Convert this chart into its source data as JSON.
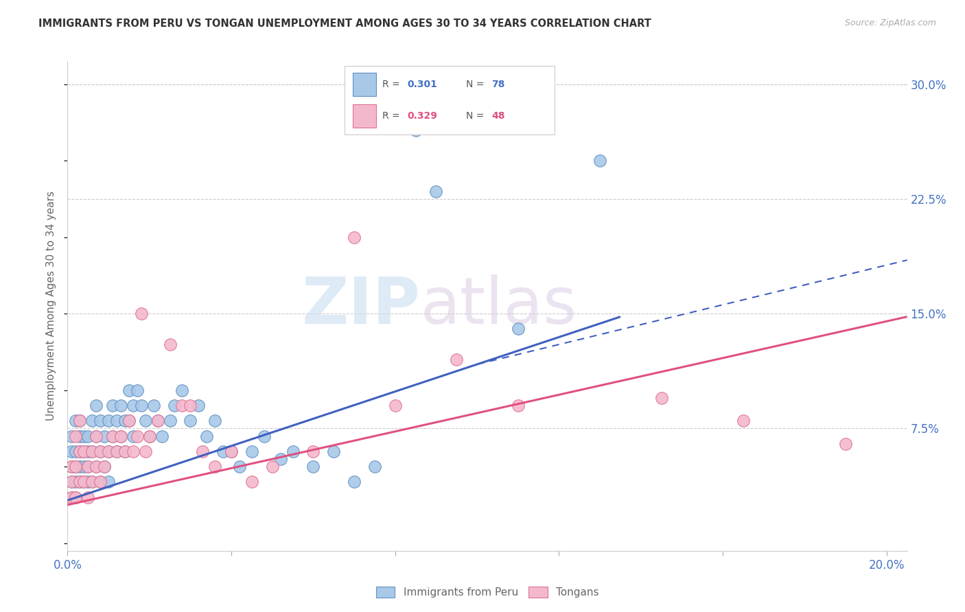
{
  "title": "IMMIGRANTS FROM PERU VS TONGAN UNEMPLOYMENT AMONG AGES 30 TO 34 YEARS CORRELATION CHART",
  "source": "Source: ZipAtlas.com",
  "ylabel": "Unemployment Among Ages 30 to 34 years",
  "xlim": [
    0.0,
    0.205
  ],
  "ylim": [
    -0.005,
    0.315
  ],
  "xticks": [
    0.0,
    0.04,
    0.08,
    0.12,
    0.16,
    0.2
  ],
  "yticks_right": [
    0.0,
    0.075,
    0.15,
    0.225,
    0.3
  ],
  "ytick_labels_right": [
    "",
    "7.5%",
    "15.0%",
    "22.5%",
    "30.0%"
  ],
  "blue_color": "#a8c8e8",
  "pink_color": "#f4b8cc",
  "blue_edge": "#6090c0",
  "pink_edge": "#e07090",
  "blue_line": "#4060c0",
  "pink_line": "#e05080",
  "watermark_zip": "ZIP",
  "watermark_atlas": "atlas",
  "trendline_blue_x0": 0.0,
  "trendline_blue_y0": 0.028,
  "trendline_blue_x1": 0.135,
  "trendline_blue_y1": 0.148,
  "trendline_blue_ext_x1": 0.205,
  "trendline_blue_ext_y1": 0.185,
  "trendline_pink_x0": 0.0,
  "trendline_pink_y0": 0.025,
  "trendline_pink_x1": 0.205,
  "trendline_pink_y1": 0.148,
  "scatter_blue_x": [
    0.001,
    0.001,
    0.001,
    0.001,
    0.001,
    0.002,
    0.002,
    0.002,
    0.002,
    0.002,
    0.003,
    0.003,
    0.003,
    0.003,
    0.003,
    0.004,
    0.004,
    0.004,
    0.004,
    0.005,
    0.005,
    0.005,
    0.005,
    0.006,
    0.006,
    0.006,
    0.007,
    0.007,
    0.007,
    0.008,
    0.008,
    0.008,
    0.009,
    0.009,
    0.01,
    0.01,
    0.01,
    0.011,
    0.011,
    0.012,
    0.012,
    0.013,
    0.013,
    0.014,
    0.014,
    0.015,
    0.015,
    0.016,
    0.016,
    0.017,
    0.018,
    0.019,
    0.02,
    0.021,
    0.022,
    0.023,
    0.025,
    0.026,
    0.028,
    0.03,
    0.032,
    0.034,
    0.036,
    0.038,
    0.04,
    0.042,
    0.045,
    0.048,
    0.052,
    0.055,
    0.06,
    0.065,
    0.07,
    0.075,
    0.085,
    0.09,
    0.11,
    0.13
  ],
  "scatter_blue_y": [
    0.05,
    0.04,
    0.03,
    0.06,
    0.07,
    0.04,
    0.06,
    0.08,
    0.05,
    0.03,
    0.05,
    0.07,
    0.04,
    0.06,
    0.08,
    0.05,
    0.07,
    0.04,
    0.06,
    0.05,
    0.07,
    0.04,
    0.06,
    0.08,
    0.06,
    0.04,
    0.07,
    0.05,
    0.09,
    0.06,
    0.08,
    0.04,
    0.07,
    0.05,
    0.08,
    0.06,
    0.04,
    0.09,
    0.07,
    0.08,
    0.06,
    0.09,
    0.07,
    0.08,
    0.06,
    0.1,
    0.08,
    0.09,
    0.07,
    0.1,
    0.09,
    0.08,
    0.07,
    0.09,
    0.08,
    0.07,
    0.08,
    0.09,
    0.1,
    0.08,
    0.09,
    0.07,
    0.08,
    0.06,
    0.06,
    0.05,
    0.06,
    0.07,
    0.055,
    0.06,
    0.05,
    0.06,
    0.04,
    0.05,
    0.27,
    0.23,
    0.14,
    0.25
  ],
  "scatter_pink_x": [
    0.001,
    0.001,
    0.001,
    0.002,
    0.002,
    0.002,
    0.003,
    0.003,
    0.003,
    0.004,
    0.004,
    0.005,
    0.005,
    0.006,
    0.006,
    0.007,
    0.007,
    0.008,
    0.008,
    0.009,
    0.01,
    0.011,
    0.012,
    0.013,
    0.014,
    0.015,
    0.016,
    0.017,
    0.018,
    0.019,
    0.02,
    0.022,
    0.025,
    0.028,
    0.03,
    0.033,
    0.036,
    0.04,
    0.045,
    0.05,
    0.06,
    0.07,
    0.08,
    0.095,
    0.11,
    0.145,
    0.165,
    0.19
  ],
  "scatter_pink_y": [
    0.04,
    0.03,
    0.05,
    0.03,
    0.05,
    0.07,
    0.04,
    0.06,
    0.08,
    0.04,
    0.06,
    0.03,
    0.05,
    0.04,
    0.06,
    0.05,
    0.07,
    0.04,
    0.06,
    0.05,
    0.06,
    0.07,
    0.06,
    0.07,
    0.06,
    0.08,
    0.06,
    0.07,
    0.15,
    0.06,
    0.07,
    0.08,
    0.13,
    0.09,
    0.09,
    0.06,
    0.05,
    0.06,
    0.04,
    0.05,
    0.06,
    0.2,
    0.09,
    0.12,
    0.09,
    0.095,
    0.08,
    0.065
  ]
}
